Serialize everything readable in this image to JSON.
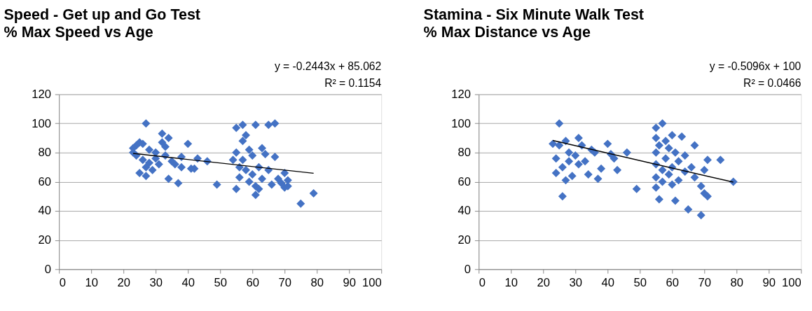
{
  "chart_data": [
    {
      "type": "scatter",
      "title": "Speed - Get up and Go Test",
      "subtitle": "% Max Speed vs Age",
      "annotations": [
        "y = -0.2443x + 85.062",
        "R² = 0.1154"
      ],
      "xlim": [
        0,
        100
      ],
      "xticks": [
        0,
        10,
        20,
        30,
        40,
        50,
        60,
        70,
        80,
        90,
        100
      ],
      "ylim": [
        0,
        120
      ],
      "yticks": [
        0,
        20,
        40,
        60,
        80,
        100,
        120
      ],
      "grid": "y",
      "marker": "diamond",
      "series": [
        {
          "color": "#4472c4",
          "x": [
            23,
            23,
            24,
            24,
            25,
            25,
            26,
            26,
            27,
            27,
            27,
            28,
            28,
            29,
            30,
            30,
            31,
            32,
            32,
            33,
            33,
            34,
            34,
            35,
            36,
            37,
            38,
            38,
            40,
            41,
            42,
            43,
            46,
            49,
            54,
            55,
            55,
            55,
            56,
            56,
            57,
            57,
            57,
            58,
            58,
            59,
            59,
            60,
            60,
            61,
            61,
            61,
            62,
            62,
            63,
            63,
            64,
            65,
            65,
            66,
            67,
            67,
            68,
            69,
            70,
            70,
            71,
            71,
            75,
            79
          ],
          "values": [
            80,
            83,
            85,
            78,
            87,
            66,
            86,
            75,
            100,
            70,
            64,
            82,
            73,
            68,
            76,
            80,
            72,
            87,
            93,
            84,
            78,
            62,
            90,
            74,
            72,
            59,
            77,
            70,
            86,
            69,
            69,
            76,
            74,
            58,
            75,
            97,
            55,
            80,
            70,
            63,
            99,
            88,
            75,
            92,
            68,
            60,
            82,
            78,
            65,
            99,
            51,
            57,
            70,
            55,
            83,
            62,
            79,
            99,
            68,
            58,
            100,
            77,
            62,
            59,
            56,
            66,
            57,
            61,
            45,
            52
          ]
        },
        {
          "type": "line",
          "color": "#000000",
          "marker": "none",
          "x": [
            23,
            79
          ],
          "values": [
            79.4,
            65.8
          ]
        }
      ]
    },
    {
      "type": "scatter",
      "title": "Stamina - Six Minute Walk Test",
      "subtitle": "% Max Distance vs Age",
      "annotations": [
        "y = -0.5096x + 100",
        "R² = 0.0466"
      ],
      "xlim": [
        0,
        100
      ],
      "xticks": [
        0,
        10,
        20,
        30,
        40,
        50,
        60,
        70,
        80,
        90,
        100
      ],
      "ylim": [
        0,
        120
      ],
      "yticks": [
        0,
        20,
        40,
        60,
        80,
        100,
        120
      ],
      "grid": "y",
      "marker": "diamond",
      "series": [
        {
          "color": "#4472c4",
          "x": [
            23,
            24,
            24,
            25,
            25,
            26,
            26,
            27,
            27,
            28,
            28,
            29,
            30,
            31,
            31,
            32,
            33,
            34,
            35,
            36,
            37,
            38,
            40,
            41,
            42,
            43,
            46,
            49,
            55,
            55,
            55,
            55,
            55,
            55,
            56,
            56,
            57,
            57,
            57,
            58,
            58,
            59,
            59,
            60,
            60,
            60,
            61,
            61,
            62,
            62,
            63,
            64,
            64,
            65,
            66,
            67,
            67,
            69,
            69,
            70,
            70,
            71,
            71,
            75,
            79
          ],
          "values": [
            86,
            76,
            66,
            100,
            85,
            50,
            70,
            88,
            61,
            74,
            80,
            64,
            78,
            90,
            72,
            85,
            74,
            65,
            82,
            80,
            62,
            69,
            86,
            79,
            76,
            68,
            80,
            55,
            97,
            90,
            80,
            72,
            63,
            56,
            48,
            85,
            100,
            68,
            60,
            88,
            76,
            83,
            65,
            92,
            70,
            58,
            47,
            80,
            74,
            61,
            91,
            78,
            67,
            41,
            70,
            85,
            63,
            37,
            57,
            68,
            52,
            75,
            50,
            75,
            60
          ]
        },
        {
          "type": "line",
          "color": "#000000",
          "marker": "none",
          "x": [
            23,
            79
          ],
          "values": [
            88.3,
            59.7
          ]
        }
      ]
    }
  ]
}
